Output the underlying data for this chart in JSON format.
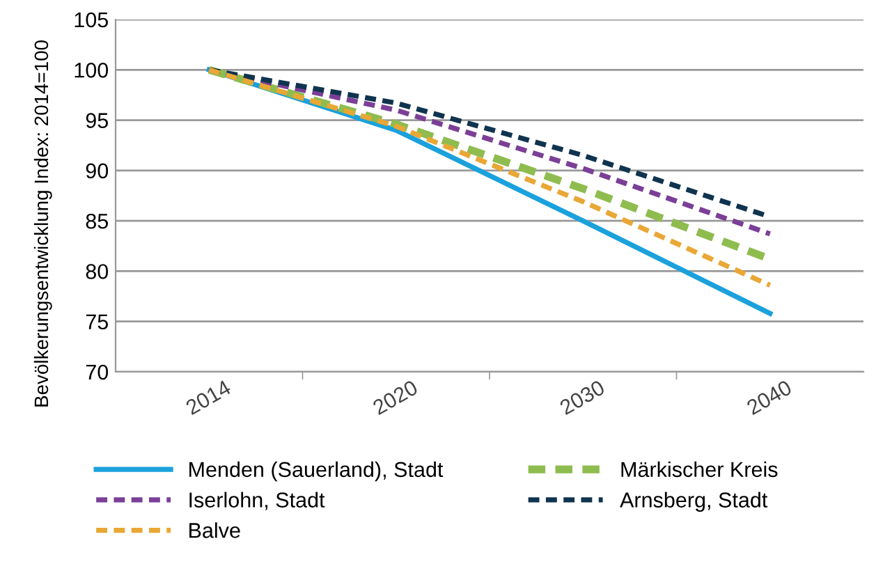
{
  "chart_data": {
    "type": "line",
    "ylabel": "Bevölkerungsentwicklung Index: 2014=100",
    "categories": [
      "2014",
      "2020",
      "2030",
      "2040"
    ],
    "ylim": [
      70,
      105
    ],
    "yticks": [
      70,
      75,
      80,
      85,
      90,
      95,
      100,
      105
    ],
    "grid": "y",
    "legend": "bottom",
    "series": [
      {
        "name": "Menden (Sauerland), Stadt",
        "color": "#1ba1dc",
        "line_style": "solid",
        "values": [
          100,
          94.0,
          85.0,
          75.8
        ]
      },
      {
        "name": "Märkischer Kreis",
        "color": "#8fbc4f",
        "line_style": "dashed",
        "values": [
          100,
          94.6,
          88.2,
          81.2
        ]
      },
      {
        "name": "Iserlohn, Stadt",
        "color": "#7b3f97",
        "line_style": "dashed",
        "values": [
          100,
          96.0,
          90.2,
          83.7
        ]
      },
      {
        "name": "Arnsberg, Stadt",
        "color": "#10344f",
        "line_style": "dashed",
        "values": [
          100,
          96.7,
          91.5,
          85.4
        ]
      },
      {
        "name": "Balve",
        "color": "#e9a735",
        "line_style": "dashed",
        "values": [
          100,
          94.4,
          86.9,
          78.6
        ]
      }
    ]
  }
}
